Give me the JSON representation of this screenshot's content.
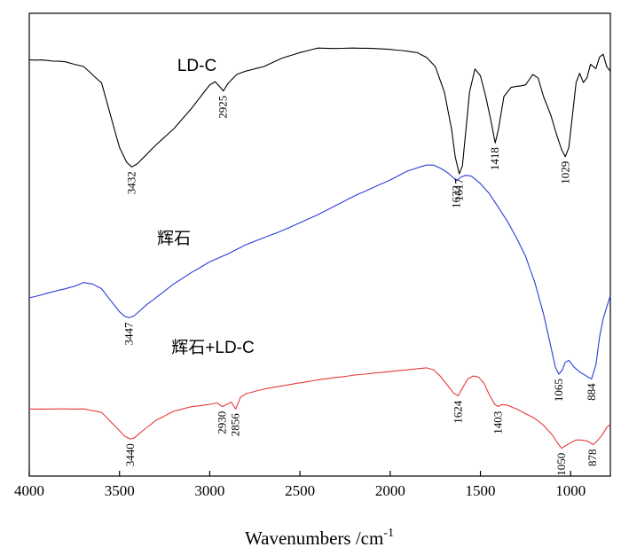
{
  "chart_data": {
    "type": "line",
    "title": "",
    "xlabel": "Wavenumbers /cm",
    "xlabel_superscript": "-1",
    "ylabel": "",
    "xlim": [
      4000,
      780
    ],
    "x_reversed": true,
    "x_ticks": [
      4000,
      3500,
      3000,
      2500,
      2000,
      1500,
      1000
    ],
    "x_tick_labels": [
      "4000",
      "3500",
      "3000",
      "2500",
      "2000",
      "1500",
      "1000"
    ],
    "y_axis": "offset transmittance (arbitrary units, no tick labels)",
    "ylim": [
      0,
      100
    ],
    "grid": false,
    "legend": "none; series labelled inline",
    "series": [
      {
        "name": "LD-C",
        "color": "#000000",
        "points": [
          [
            4000,
            90.0
          ],
          [
            3900,
            89.8
          ],
          [
            3800,
            89.5
          ],
          [
            3700,
            88.5
          ],
          [
            3600,
            85.0
          ],
          [
            3550,
            78.0
          ],
          [
            3500,
            71.0
          ],
          [
            3460,
            67.8
          ],
          [
            3432,
            66.8
          ],
          [
            3400,
            67.5
          ],
          [
            3350,
            69.5
          ],
          [
            3300,
            71.5
          ],
          [
            3200,
            75.0
          ],
          [
            3100,
            79.5
          ],
          [
            3000,
            84.5
          ],
          [
            2970,
            85.2
          ],
          [
            2945,
            84.2
          ],
          [
            2925,
            83.2
          ],
          [
            2900,
            84.8
          ],
          [
            2850,
            86.8
          ],
          [
            2800,
            87.5
          ],
          [
            2700,
            88.5
          ],
          [
            2600,
            90.3
          ],
          [
            2500,
            91.5
          ],
          [
            2400,
            92.5
          ],
          [
            2300,
            92.4
          ],
          [
            2200,
            92.5
          ],
          [
            2100,
            92.4
          ],
          [
            2000,
            92.2
          ],
          [
            1900,
            91.8
          ],
          [
            1850,
            91.5
          ],
          [
            1800,
            90.5
          ],
          [
            1750,
            88.5
          ],
          [
            1700,
            83.0
          ],
          [
            1660,
            75.0
          ],
          [
            1640,
            69.0
          ],
          [
            1617,
            65.3
          ],
          [
            1600,
            67.0
          ],
          [
            1580,
            75.0
          ],
          [
            1560,
            83.0
          ],
          [
            1530,
            88.0
          ],
          [
            1500,
            86.5
          ],
          [
            1470,
            82.0
          ],
          [
            1440,
            76.5
          ],
          [
            1418,
            72.0
          ],
          [
            1400,
            75.0
          ],
          [
            1370,
            82.0
          ],
          [
            1330,
            84.0
          ],
          [
            1300,
            84.2
          ],
          [
            1250,
            84.5
          ],
          [
            1210,
            86.8
          ],
          [
            1180,
            86.0
          ],
          [
            1150,
            82.0
          ],
          [
            1110,
            78.0
          ],
          [
            1080,
            74.0
          ],
          [
            1050,
            70.5
          ],
          [
            1029,
            69.0
          ],
          [
            1010,
            71.0
          ],
          [
            990,
            78.0
          ],
          [
            970,
            85.0
          ],
          [
            950,
            87.0
          ],
          [
            930,
            85.0
          ],
          [
            910,
            86.0
          ],
          [
            890,
            89.0
          ],
          [
            860,
            88.0
          ],
          [
            840,
            90.5
          ],
          [
            820,
            91.2
          ],
          [
            800,
            88.5
          ],
          [
            780,
            87.5
          ]
        ]
      },
      {
        "name": "辉石",
        "color": "#2a3ed6",
        "points": [
          [
            4000,
            38.5
          ],
          [
            3900,
            39.5
          ],
          [
            3800,
            40.5
          ],
          [
            3750,
            41.0
          ],
          [
            3700,
            41.8
          ],
          [
            3650,
            41.5
          ],
          [
            3600,
            40.5
          ],
          [
            3550,
            38.0
          ],
          [
            3500,
            35.5
          ],
          [
            3470,
            34.5
          ],
          [
            3447,
            34.2
          ],
          [
            3420,
            34.6
          ],
          [
            3350,
            37.0
          ],
          [
            3300,
            38.5
          ],
          [
            3200,
            41.5
          ],
          [
            3100,
            44.0
          ],
          [
            3000,
            46.3
          ],
          [
            2960,
            47.0
          ],
          [
            2930,
            47.5
          ],
          [
            2900,
            48.0
          ],
          [
            2800,
            50.0
          ],
          [
            2600,
            53.0
          ],
          [
            2400,
            56.5
          ],
          [
            2200,
            60.5
          ],
          [
            2000,
            64.0
          ],
          [
            1900,
            66.0
          ],
          [
            1800,
            67.2
          ],
          [
            1760,
            67.2
          ],
          [
            1720,
            66.5
          ],
          [
            1680,
            65.5
          ],
          [
            1650,
            64.5
          ],
          [
            1632,
            63.8
          ],
          [
            1610,
            64.6
          ],
          [
            1580,
            65.0
          ],
          [
            1550,
            64.8
          ],
          [
            1500,
            63.2
          ],
          [
            1450,
            61.0
          ],
          [
            1400,
            58.0
          ],
          [
            1350,
            55.0
          ],
          [
            1300,
            51.5
          ],
          [
            1250,
            47.5
          ],
          [
            1200,
            42.0
          ],
          [
            1150,
            35.0
          ],
          [
            1110,
            28.0
          ],
          [
            1085,
            23.5
          ],
          [
            1065,
            22.0
          ],
          [
            1045,
            23.0
          ],
          [
            1030,
            24.6
          ],
          [
            1010,
            25.0
          ],
          [
            980,
            23.5
          ],
          [
            950,
            22.5
          ],
          [
            920,
            21.8
          ],
          [
            900,
            21.3
          ],
          [
            884,
            21.0
          ],
          [
            860,
            24.0
          ],
          [
            840,
            30.0
          ],
          [
            820,
            34.0
          ],
          [
            800,
            36.5
          ],
          [
            780,
            39.0
          ]
        ]
      },
      {
        "name": "辉石+LD-C",
        "color": "#e63a3a",
        "points": [
          [
            4000,
            14.5
          ],
          [
            3900,
            14.5
          ],
          [
            3800,
            14.5
          ],
          [
            3700,
            14.5
          ],
          [
            3600,
            13.8
          ],
          [
            3550,
            11.8
          ],
          [
            3500,
            9.8
          ],
          [
            3470,
            8.6
          ],
          [
            3440,
            8.0
          ],
          [
            3420,
            8.2
          ],
          [
            3380,
            9.5
          ],
          [
            3300,
            12.0
          ],
          [
            3200,
            14.0
          ],
          [
            3100,
            15.0
          ],
          [
            3000,
            15.5
          ],
          [
            2960,
            15.8
          ],
          [
            2930,
            15.0
          ],
          [
            2900,
            15.6
          ],
          [
            2880,
            16.0
          ],
          [
            2856,
            14.5
          ],
          [
            2830,
            17.0
          ],
          [
            2800,
            17.8
          ],
          [
            2700,
            18.8
          ],
          [
            2600,
            19.5
          ],
          [
            2400,
            20.8
          ],
          [
            2200,
            21.8
          ],
          [
            2000,
            22.6
          ],
          [
            1900,
            23.0
          ],
          [
            1800,
            23.4
          ],
          [
            1760,
            23.0
          ],
          [
            1720,
            21.5
          ],
          [
            1680,
            19.5
          ],
          [
            1650,
            18.0
          ],
          [
            1624,
            17.3
          ],
          [
            1600,
            19.0
          ],
          [
            1570,
            21.0
          ],
          [
            1540,
            21.6
          ],
          [
            1510,
            21.4
          ],
          [
            1480,
            20.0
          ],
          [
            1450,
            17.5
          ],
          [
            1420,
            15.5
          ],
          [
            1403,
            15.0
          ],
          [
            1380,
            15.5
          ],
          [
            1350,
            15.3
          ],
          [
            1300,
            14.5
          ],
          [
            1250,
            13.5
          ],
          [
            1200,
            12.5
          ],
          [
            1150,
            11.0
          ],
          [
            1100,
            8.8
          ],
          [
            1070,
            7.0
          ],
          [
            1050,
            6.0
          ],
          [
            1030,
            6.5
          ],
          [
            1000,
            7.2
          ],
          [
            970,
            7.8
          ],
          [
            940,
            7.8
          ],
          [
            910,
            7.6
          ],
          [
            890,
            7.2
          ],
          [
            878,
            6.8
          ],
          [
            860,
            7.3
          ],
          [
            840,
            8.2
          ],
          [
            820,
            9.2
          ],
          [
            800,
            10.5
          ],
          [
            780,
            11.2
          ]
        ]
      }
    ],
    "annotations": [
      {
        "series": "LD-C",
        "x": 3432,
        "y": 66.8,
        "text": "3432"
      },
      {
        "series": "LD-C",
        "x": 2925,
        "y": 83.2,
        "text": "2925"
      },
      {
        "series": "LD-C",
        "x": 1617,
        "y": 65.3,
        "text": "1617"
      },
      {
        "series": "LD-C",
        "x": 1418,
        "y": 72.0,
        "text": "1418"
      },
      {
        "series": "LD-C",
        "x": 1029,
        "y": 69.0,
        "text": "1029"
      },
      {
        "series": "辉石",
        "x": 1632,
        "y": 63.8,
        "text": "1632"
      },
      {
        "series": "辉石",
        "x": 3447,
        "y": 34.2,
        "text": "3447"
      },
      {
        "series": "辉石",
        "x": 1065,
        "y": 22.0,
        "text": "1065"
      },
      {
        "series": "辉石",
        "x": 884,
        "y": 21.0,
        "text": "884"
      },
      {
        "series": "辉石+LD-C",
        "x": 1624,
        "y": 17.3,
        "text": "1624"
      },
      {
        "series": "辉石+LD-C",
        "x": 2930,
        "y": 15.0,
        "text": "2930"
      },
      {
        "series": "辉石+LD-C",
        "x": 2856,
        "y": 14.5,
        "text": "2856"
      },
      {
        "series": "辉石+LD-C",
        "x": 1403,
        "y": 15.0,
        "text": "1403"
      },
      {
        "series": "辉石+LD-C",
        "x": 3440,
        "y": 8.0,
        "text": "3440"
      },
      {
        "series": "辉石+LD-C",
        "x": 1050,
        "y": 6.0,
        "text": "1050"
      },
      {
        "series": "辉石+LD-C",
        "x": 878,
        "y": 6.8,
        "text": "878"
      }
    ]
  }
}
